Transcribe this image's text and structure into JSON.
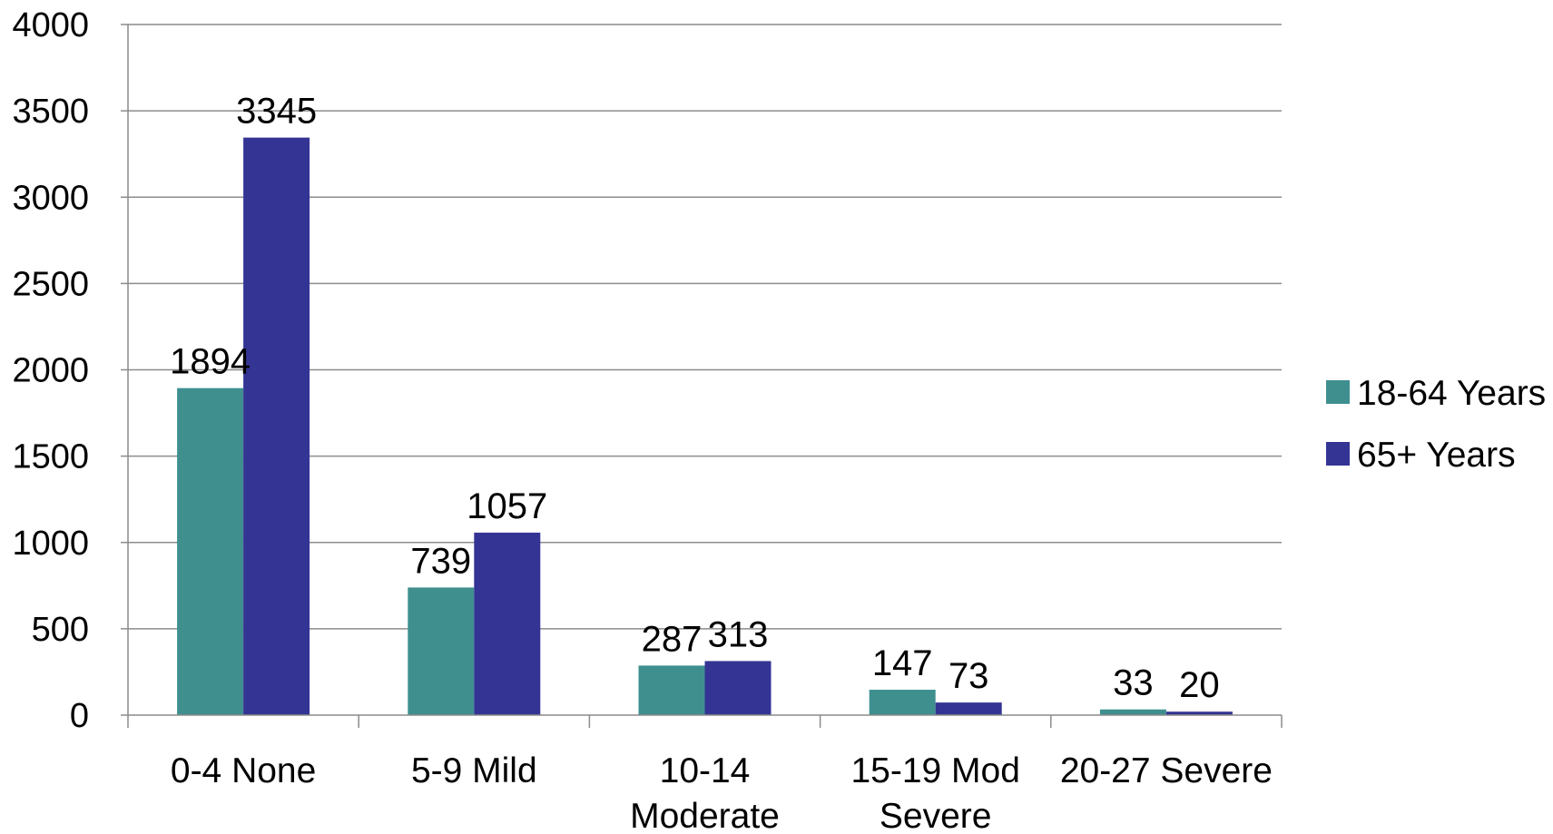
{
  "chart_data": {
    "type": "bar",
    "categories": [
      [
        "0-4 None"
      ],
      [
        "5-9 Mild"
      ],
      [
        "10-14",
        "Moderate"
      ],
      [
        "15-19 Mod",
        "Severe"
      ],
      [
        "20-27 Severe"
      ]
    ],
    "series": [
      {
        "name": "18-64 Years",
        "color": "#3f8f8f",
        "values": [
          1894,
          739,
          287,
          147,
          33
        ]
      },
      {
        "name": "65+ Years",
        "color": "#343494",
        "values": [
          3345,
          1057,
          313,
          73,
          20
        ]
      }
    ],
    "ylim": [
      0,
      4000
    ],
    "yticks": [
      0,
      500,
      1000,
      1500,
      2000,
      2500,
      3000,
      3500,
      4000
    ],
    "grid": true,
    "legend_position": "right",
    "gridline_color": "#8c8c8c",
    "axis_color": "#8c8c8c"
  }
}
